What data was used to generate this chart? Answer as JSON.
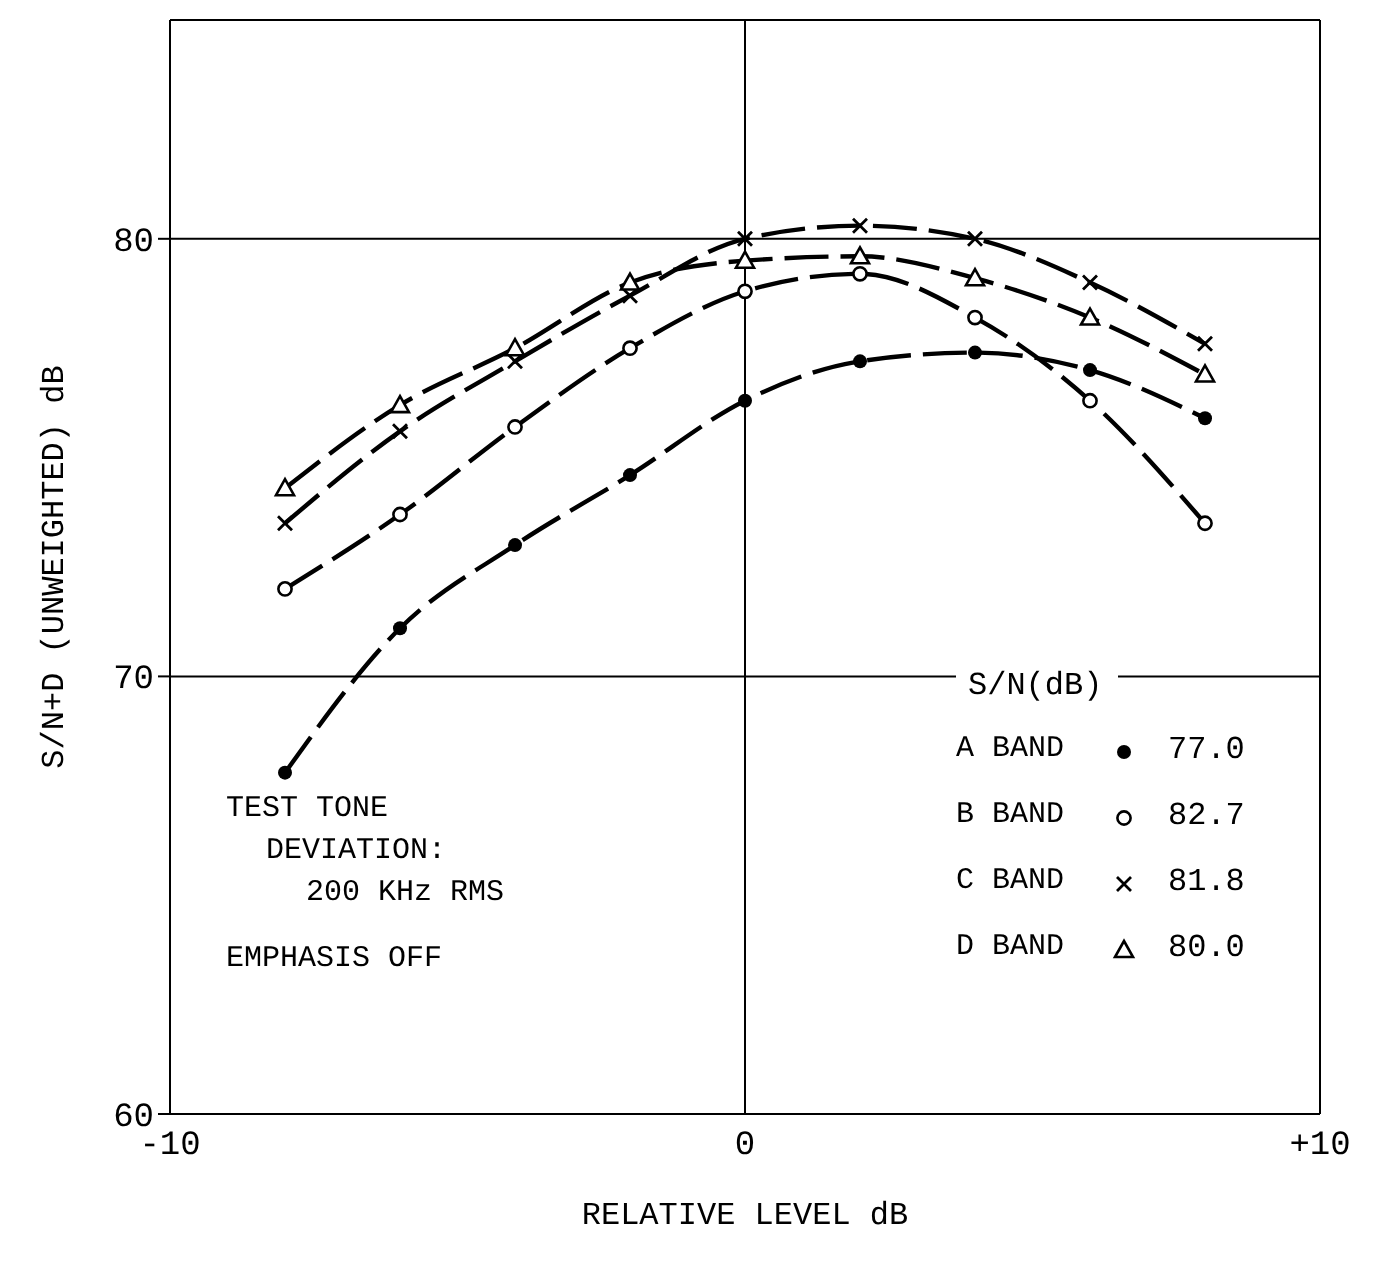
{
  "chart_data": {
    "type": "line",
    "xlabel": "RELATIVE LEVEL  dB",
    "ylabel": "S/N+D  (UNWEIGHTED)  dB",
    "legend_title": "S/N(dB)",
    "x": [
      -8,
      -6,
      -4,
      -2,
      0,
      2,
      4,
      6,
      8
    ],
    "series": [
      {
        "name": "A BAND",
        "color": "#000000",
        "marker": "circle",
        "values": [
          67.8,
          71.1,
          73.0,
          74.6,
          76.3,
          77.2,
          77.4,
          77.0,
          75.9
        ]
      },
      {
        "name": "B BAND",
        "color": "#000000",
        "marker": "open-circle",
        "values": [
          72.0,
          73.7,
          75.7,
          77.5,
          78.8,
          79.2,
          78.2,
          76.3,
          73.5
        ]
      },
      {
        "name": "C BAND",
        "color": "#000000",
        "marker": "cross",
        "values": [
          73.5,
          75.6,
          77.2,
          78.7,
          80.0,
          80.3,
          80.0,
          79.0,
          77.6
        ]
      },
      {
        "name": "D BAND",
        "color": "#000000",
        "marker": "triangle",
        "values": [
          74.3,
          76.2,
          77.5,
          79.0,
          79.5,
          79.6,
          79.1,
          78.2,
          76.9
        ]
      }
    ],
    "xlim": [
      -10,
      10
    ],
    "xticks": [
      -10,
      0,
      {
        "value": 10,
        "label": "+10"
      }
    ],
    "ylim": [
      60,
      85
    ],
    "yticks": [
      60,
      70,
      80
    ],
    "grid": true,
    "legend": "bottom right",
    "line_style": "dashed",
    "annotations": [
      "TEST TONE",
      "DEVIATION:",
      "200 KHz RMS",
      "EMPHASIS OFF",
      "77.0",
      "82.7",
      "81.8",
      "80.0"
    ]
  }
}
